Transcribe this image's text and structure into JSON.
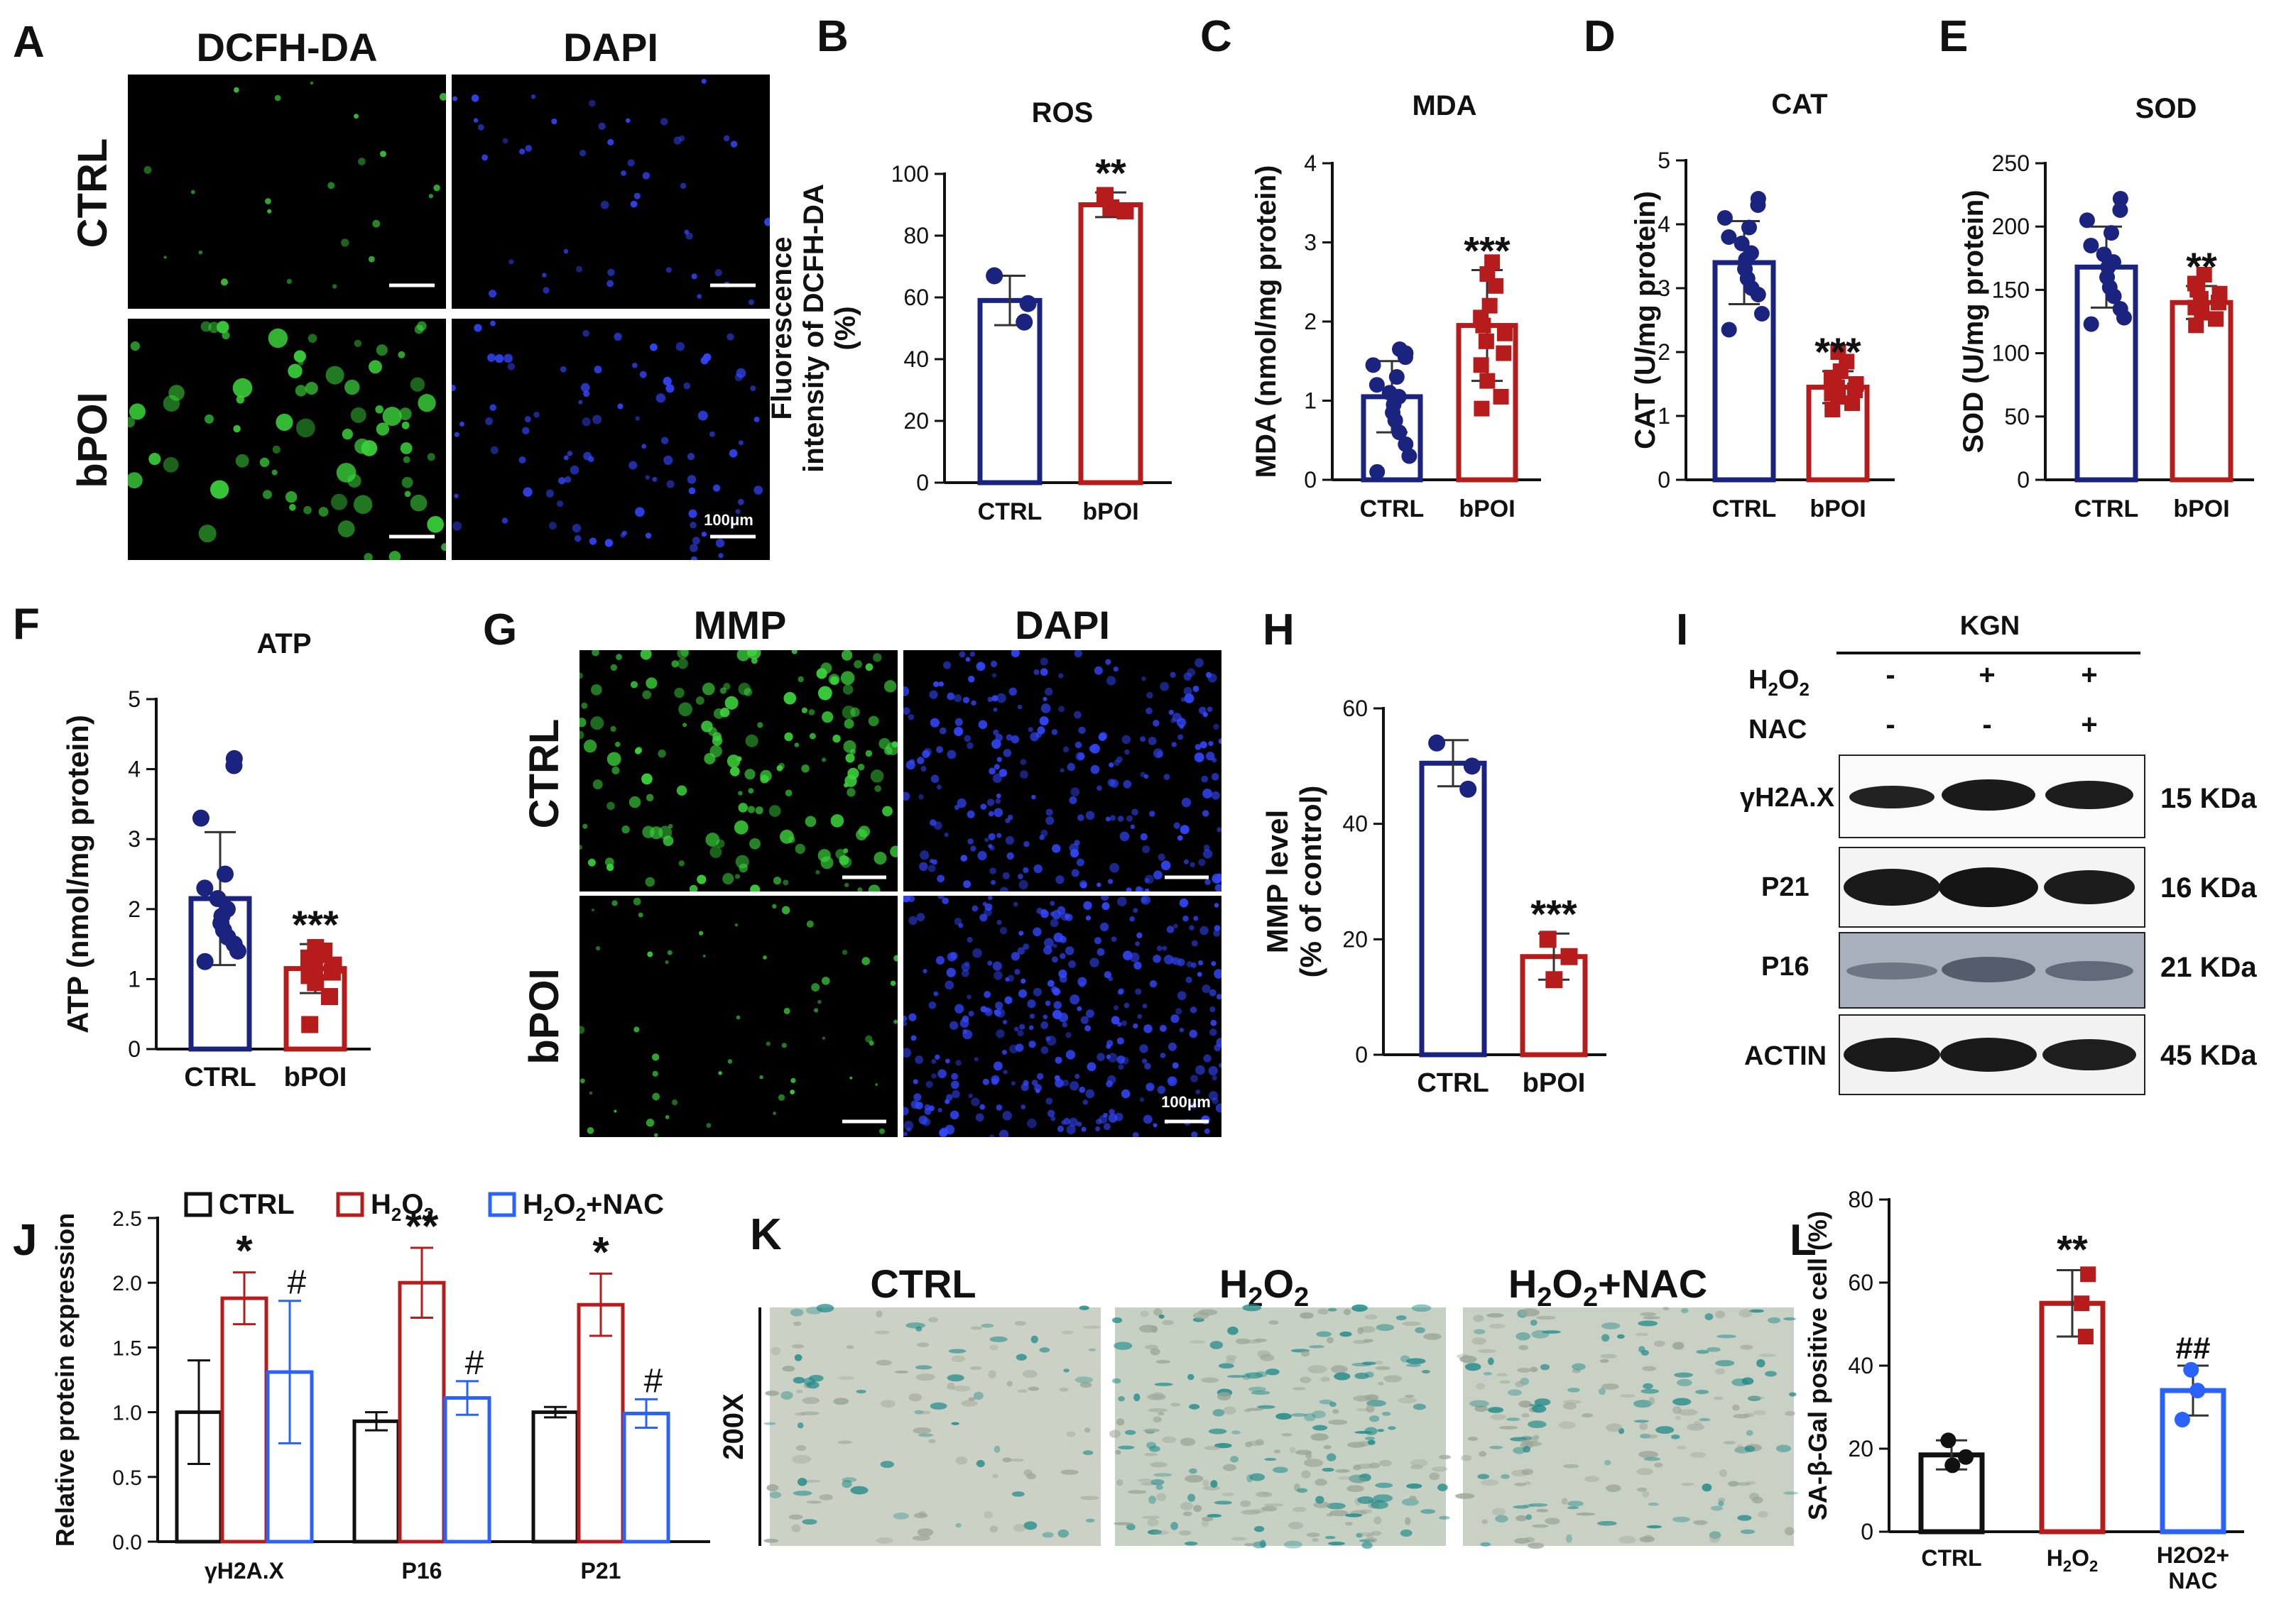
{
  "panels": {
    "A": {
      "letter": "A",
      "col1": "DCFH-DA",
      "col2": "DAPI",
      "row1": "CTRL",
      "row2": "bPOI",
      "scale": "100μm"
    },
    "B": {
      "letter": "B"
    },
    "C": {
      "letter": "C"
    },
    "D": {
      "letter": "D"
    },
    "E": {
      "letter": "E"
    },
    "F": {
      "letter": "F"
    },
    "G": {
      "letter": "G",
      "col1": "MMP",
      "col2": "DAPI",
      "row1": "CTRL",
      "row2": "bPOI",
      "scale": "100μm"
    },
    "H": {
      "letter": "H"
    },
    "I": {
      "letter": "I",
      "title": "KGN",
      "h2o2_label": "H2O2",
      "h2o2": [
        "-",
        "+",
        "+"
      ],
      "nac_label": "NAC",
      "nac": [
        "-",
        "-",
        "+"
      ],
      "bands": [
        {
          "name": "γH2A.X",
          "kda": "15 KDa"
        },
        {
          "name": "P21",
          "kda": "16 KDa"
        },
        {
          "name": "P16",
          "kda": "21 KDa"
        },
        {
          "name": "ACTIN",
          "kda": "45 KDa"
        }
      ]
    },
    "J": {
      "letter": "J"
    },
    "K": {
      "letter": "K",
      "cols": [
        "CTRL",
        "H2O2",
        "H2O2+NAC"
      ],
      "row": "200X"
    },
    "L": {
      "letter": "L"
    }
  },
  "colors": {
    "ctrl": "#1a237e",
    "bpoi": "#b71c1c",
    "nac": "#2962ff",
    "green": "#3bd23b",
    "blue": "#3347ff",
    "stain": "#1f8a8a"
  },
  "chart_data": [
    {
      "id": "B",
      "type": "bar",
      "title": "ROS",
      "ylabel": "Fluorescence intensity of DCFH-DA (%)",
      "ylim": [
        0,
        100
      ],
      "yticks": [
        0,
        20,
        40,
        60,
        80,
        100
      ],
      "categories": [
        "CTRL",
        "bPOI"
      ],
      "values": [
        59,
        90
      ],
      "errors": [
        8,
        4
      ],
      "points": [
        [
          67,
          58,
          52
        ],
        [
          93,
          88,
          89
        ]
      ],
      "sig": [
        "",
        "**"
      ]
    },
    {
      "id": "C",
      "type": "bar",
      "title": "MDA",
      "ylabel": "MDA (nmol/mg protein)",
      "ylim": [
        0,
        4
      ],
      "yticks": [
        0,
        1,
        2,
        3,
        4
      ],
      "categories": [
        "CTRL",
        "bPOI"
      ],
      "values": [
        1.05,
        1.95
      ],
      "errors": [
        0.45,
        0.7
      ],
      "points": [
        [
          0.1,
          0.3,
          0.45,
          0.6,
          0.75,
          0.85,
          0.95,
          1.05,
          1.1,
          1.2,
          1.3,
          1.45,
          1.55,
          1.6,
          1.65
        ],
        [
          0.9,
          1.05,
          1.25,
          1.45,
          1.6,
          1.75,
          1.85,
          1.95,
          2.05,
          2.2,
          2.45,
          2.6,
          2.75
        ]
      ],
      "sig": [
        "",
        "***"
      ]
    },
    {
      "id": "D",
      "type": "bar",
      "title": "CAT",
      "ylabel": "CAT (U/mg protein)",
      "ylim": [
        0,
        5
      ],
      "yticks": [
        0,
        1,
        2,
        3,
        4,
        5
      ],
      "categories": [
        "CTRL",
        "bPOI"
      ],
      "values": [
        3.4,
        1.45
      ],
      "errors": [
        0.65,
        0.25
      ],
      "points": [
        [
          2.35,
          2.6,
          2.9,
          3.0,
          3.15,
          3.3,
          3.45,
          3.55,
          3.7,
          3.8,
          3.95,
          4.1,
          4.3,
          4.4
        ],
        [
          1.1,
          1.2,
          1.3,
          1.35,
          1.4,
          1.45,
          1.5,
          1.55,
          1.6,
          1.7,
          1.85,
          2.0
        ]
      ],
      "sig": [
        "",
        "***"
      ]
    },
    {
      "id": "E",
      "type": "bar",
      "title": "SOD",
      "ylabel": "SOD (U/mg protein)",
      "ylim": [
        0,
        250
      ],
      "yticks": [
        0,
        50,
        100,
        150,
        200,
        250
      ],
      "categories": [
        "CTRL",
        "bPOI"
      ],
      "values": [
        168,
        140
      ],
      "errors": [
        32,
        13
      ],
      "points": [
        [
          123,
          128,
          135,
          145,
          152,
          160,
          168,
          172,
          178,
          185,
          195,
          205,
          213,
          222
        ],
        [
          122,
          127,
          132,
          136,
          140,
          143,
          147,
          150,
          155,
          162
        ]
      ],
      "sig": [
        "",
        "**"
      ]
    },
    {
      "id": "F",
      "type": "bar",
      "title": "ATP",
      "ylabel": "ATP (nmol/mg protein)",
      "ylim": [
        0,
        5
      ],
      "yticks": [
        0,
        1,
        2,
        3,
        4,
        5
      ],
      "categories": [
        "CTRL",
        "bPOI"
      ],
      "values": [
        2.15,
        1.15
      ],
      "errors": [
        0.95,
        0.35
      ],
      "points": [
        [
          1.25,
          1.4,
          1.5,
          1.6,
          1.7,
          1.8,
          1.9,
          2.0,
          2.15,
          2.3,
          2.5,
          3.3,
          4.05,
          4.15
        ],
        [
          0.35,
          0.75,
          0.95,
          1.05,
          1.1,
          1.15,
          1.2,
          1.25,
          1.3,
          1.35,
          1.4,
          1.45
        ]
      ],
      "sig": [
        "",
        "***"
      ]
    },
    {
      "id": "H",
      "type": "bar",
      "title": "",
      "ylabel": "MMP level (% of control)",
      "ylim": [
        0,
        60
      ],
      "yticks": [
        0,
        20,
        40,
        60
      ],
      "categories": [
        "CTRL",
        "bPOI"
      ],
      "values": [
        50.5,
        17
      ],
      "errors": [
        4,
        4
      ],
      "points": [
        [
          54,
          50,
          46
        ],
        [
          20,
          17,
          13
        ]
      ],
      "sig": [
        "",
        "***"
      ]
    },
    {
      "id": "J",
      "type": "bar",
      "title": "",
      "ylabel": "Relative protein expression",
      "ylim": [
        0,
        2.5
      ],
      "yticks": [
        "0.0",
        "0.5",
        "1.0",
        "1.5",
        "2.0",
        "2.5"
      ],
      "categories": [
        "γH2A.X",
        "P16",
        "P21"
      ],
      "series": [
        {
          "name": "CTRL",
          "values": [
            1.0,
            0.93,
            1.0
          ],
          "errors": [
            0.4,
            0.07,
            0.04
          ]
        },
        {
          "name": "H2O2",
          "values": [
            1.88,
            2.0,
            1.83
          ],
          "errors": [
            0.2,
            0.27,
            0.24
          ]
        },
        {
          "name": "H2O2+NAC",
          "values": [
            1.31,
            1.11,
            0.99
          ],
          "errors": [
            0.55,
            0.13,
            0.11
          ]
        }
      ],
      "sig": [
        [
          "",
          "*",
          "#"
        ],
        [
          "",
          "**",
          "#"
        ],
        [
          "",
          "*",
          "#"
        ]
      ]
    },
    {
      "id": "L",
      "type": "bar",
      "title": "",
      "ylabel": "SA-β-Gal positive cell (%)",
      "ylim": [
        0,
        80
      ],
      "yticks": [
        0,
        20,
        40,
        60,
        80
      ],
      "categories": [
        "CTRL",
        "H2O2",
        "H2O2+ NAC"
      ],
      "values": [
        18.5,
        55,
        34
      ],
      "errors": [
        3.5,
        8,
        6
      ],
      "points": [
        [
          22,
          18,
          16
        ],
        [
          62,
          55,
          47
        ],
        [
          39,
          34,
          27
        ]
      ],
      "sig": [
        "",
        "**",
        "##"
      ]
    }
  ]
}
